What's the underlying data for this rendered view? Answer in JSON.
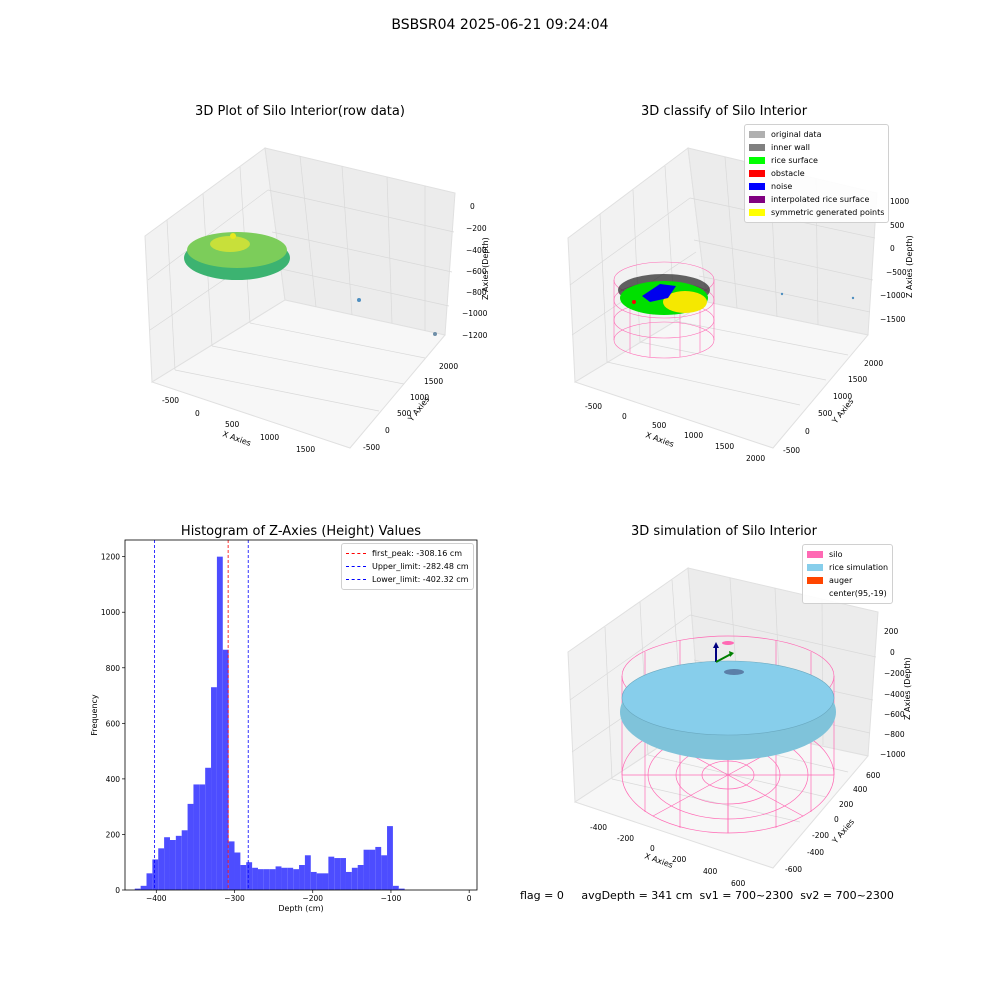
{
  "figure": {
    "suptitle": "BSBSR04 2025-06-21 09:24:04",
    "footer": "flag = 0     avgDepth = 341 cm  sv1 = 700~2300  sv2 = 700~2300"
  },
  "colors": {
    "bar": "#4d4dff",
    "peak_line": "#ff0000",
    "limit_line": "#0000ff",
    "pane": "#f2f2f2",
    "grid": "#d9d9d9"
  },
  "panels": {
    "raw": {
      "title": "3D Plot of Silo Interior(row data)",
      "xlabel": "X Axies",
      "ylabel": "Y Axies",
      "zlabel": "Z Axies (Depth)",
      "xticks": [
        "-500",
        "0",
        "500",
        "1000",
        "1500"
      ],
      "yticks": [
        "-500",
        "0",
        "500",
        "1000",
        "1500",
        "2000"
      ],
      "zticks": [
        "0",
        "−200",
        "−400",
        "−600",
        "−800",
        "−1000",
        "−1200"
      ]
    },
    "classify": {
      "title": "3D classify of Silo Interior",
      "xlabel": "X Axies",
      "ylabel": "Y Axies",
      "zlabel": "Z Axies (Depth)",
      "xticks": [
        "-500",
        "0",
        "500",
        "1000",
        "1500",
        "2000"
      ],
      "yticks": [
        "-500",
        "0",
        "500",
        "1000",
        "1500",
        "2000"
      ],
      "zticks": [
        "1000",
        "500",
        "0",
        "−500",
        "−1000",
        "−1500"
      ],
      "legend": [
        {
          "label": "original data",
          "color": "#b0b0b0"
        },
        {
          "label": "inner wall",
          "color": "#808080"
        },
        {
          "label": "rice surface",
          "color": "#00ff00"
        },
        {
          "label": "obstacle",
          "color": "#ff0000"
        },
        {
          "label": "noise",
          "color": "#0000ff"
        },
        {
          "label": "interpolated rice surface",
          "color": "#800080"
        },
        {
          "label": "symmetric generated points",
          "color": "#ffff00"
        }
      ]
    },
    "simulation": {
      "title": "3D simulation of Silo Interior",
      "xlabel": "X Axies",
      "ylabel": "Y Axies",
      "zlabel": "Z Axies (Depth)",
      "xticks": [
        "-400",
        "-200",
        "0",
        "200",
        "400",
        "600"
      ],
      "yticks": [
        "-600",
        "-400",
        "-200",
        "0",
        "200",
        "400",
        "600"
      ],
      "zticks": [
        "200",
        "0",
        "−200",
        "−400",
        "−600",
        "−800",
        "−1000"
      ],
      "legend": [
        {
          "label": "silo",
          "color": "#ff69b4"
        },
        {
          "label": "rice simulation",
          "color": "#87ceeb"
        },
        {
          "label": "auger",
          "color": "#ff4500"
        },
        {
          "label": "center(95,-19)",
          "color": ""
        }
      ]
    }
  },
  "chart_data": {
    "type": "bar",
    "title": "Histogram of Z-Axies (Height) Values",
    "xlabel": "Depth (cm)",
    "ylabel": "Frequency",
    "xlim": [
      -440,
      10
    ],
    "ylim": [
      0,
      1260
    ],
    "xticks": [
      -400,
      -300,
      -200,
      -100,
      0
    ],
    "yticks": [
      0,
      200,
      400,
      600,
      800,
      1000,
      1200
    ],
    "bin_width": 7.5,
    "bin_start": -427.5,
    "values": [
      5,
      15,
      60,
      110,
      150,
      190,
      180,
      195,
      215,
      310,
      380,
      380,
      440,
      730,
      1200,
      865,
      175,
      135,
      90,
      100,
      80,
      75,
      75,
      75,
      85,
      80,
      80,
      75,
      90,
      125,
      65,
      60,
      60,
      120,
      115,
      115,
      65,
      80,
      90,
      145,
      145,
      155,
      125,
      230,
      15,
      5
    ],
    "lines": [
      {
        "label": "first_peak: -308.16 cm",
        "x": -308.16,
        "color": "#ff0000"
      },
      {
        "label": "Upper_limit: -282.48 cm",
        "x": -282.48,
        "color": "#0000ff"
      },
      {
        "label": "Lower_limit: -402.32 cm",
        "x": -402.32,
        "color": "#0000ff"
      }
    ]
  }
}
